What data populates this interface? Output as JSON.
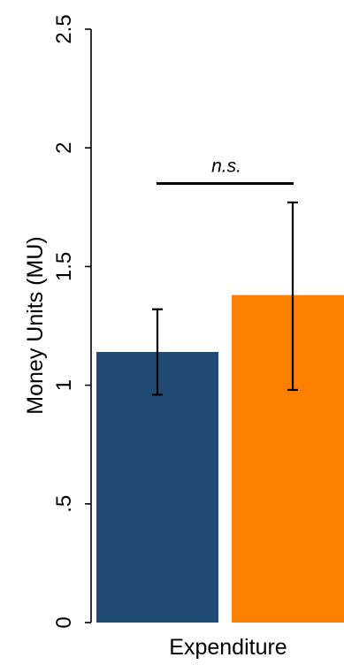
{
  "chart_data": {
    "type": "bar",
    "ylabel": "Money Units (MU)",
    "xlabel": "Expenditure",
    "ylim": [
      0,
      2.5
    ],
    "yticks": [
      {
        "value": 0,
        "label": "0"
      },
      {
        "value": 0.5,
        "label": ".5"
      },
      {
        "value": 1,
        "label": "1"
      },
      {
        "value": 1.5,
        "label": "1.5"
      },
      {
        "value": 2,
        "label": "2"
      },
      {
        "value": 2.5,
        "label": "2.5"
      }
    ],
    "grid": false,
    "bars": [
      {
        "value": 1.14,
        "error_low": 0.96,
        "error_high": 1.32,
        "color": "#1f4a73"
      },
      {
        "value": 1.38,
        "error_low": 0.98,
        "error_high": 1.77,
        "color": "#ff8000"
      }
    ],
    "significance": {
      "label": "n.s.",
      "between": [
        0,
        1
      ],
      "y": 1.85
    }
  }
}
